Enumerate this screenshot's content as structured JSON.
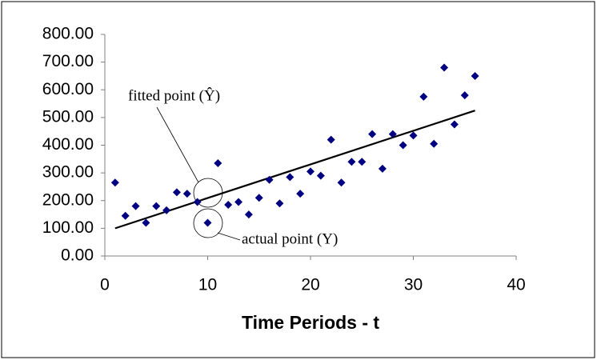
{
  "chart_data": {
    "type": "scatter",
    "x_label": "Time Periods - t",
    "annotations": [
      "fitted point (Ŷ)",
      "actual point (Y)"
    ],
    "x": [
      1,
      2,
      3,
      4,
      5,
      6,
      7,
      8,
      9,
      10,
      11,
      12,
      13,
      14,
      15,
      16,
      17,
      18,
      19,
      20,
      21,
      22,
      23,
      24,
      25,
      26,
      27,
      28,
      29,
      30,
      31,
      32,
      33,
      34,
      35,
      36
    ],
    "values": [
      265,
      145,
      180,
      120,
      180,
      165,
      230,
      225,
      195,
      120,
      335,
      185,
      195,
      150,
      210,
      275,
      190,
      285,
      225,
      305,
      290,
      420,
      265,
      340,
      340,
      440,
      315,
      440,
      400,
      435,
      575,
      405,
      680,
      475,
      580,
      650
    ],
    "color": "#000080",
    "trendline": {
      "x": [
        1,
        36
      ],
      "values": [
        100,
        525
      ],
      "color": "#000000"
    },
    "xlim": [
      0,
      40
    ],
    "xticks": [
      0,
      10,
      20,
      30,
      40
    ],
    "ylim": [
      0,
      800
    ],
    "yticks": [
      {
        "value": 0,
        "label": "0.00"
      },
      {
        "value": 100,
        "label": "100.00"
      },
      {
        "value": 200,
        "label": "200.00"
      },
      {
        "value": 300,
        "label": "300.00"
      },
      {
        "value": 400,
        "label": "400.00"
      },
      {
        "value": 500,
        "label": "500.00"
      },
      {
        "value": 600,
        "label": "600.00"
      },
      {
        "value": 700,
        "label": "700.00"
      },
      {
        "value": 800,
        "label": "800.00"
      }
    ]
  }
}
